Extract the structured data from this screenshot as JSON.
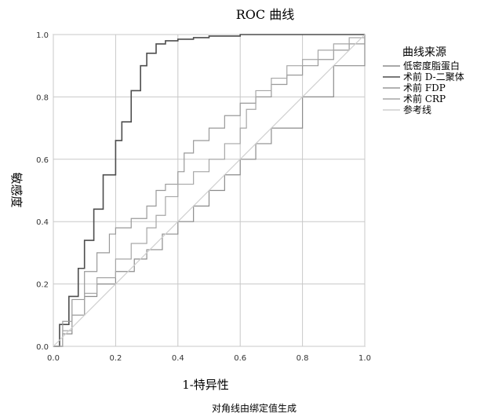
{
  "chart_data": {
    "type": "line",
    "title": "ROC 曲线",
    "xlabel": "1-特异性",
    "ylabel": "敏感度",
    "footnote": "对角线由绑定值生成",
    "xlim": [
      0,
      1
    ],
    "ylim": [
      0,
      1
    ],
    "x_ticks": [
      "0.0",
      "0.2",
      "0.4",
      "0.6",
      "0.8",
      "1.0"
    ],
    "y_ticks": [
      "0.0",
      "0.2",
      "0.4",
      "0.6",
      "0.8",
      "1.0"
    ],
    "grid": true,
    "legend": {
      "title": "曲线来源",
      "position": "right"
    },
    "series": [
      {
        "name": "低密度脂蛋白",
        "color": "#8c8c8c",
        "x": [
          0,
          0.03,
          0.06,
          0.1,
          0.14,
          0.2,
          0.26,
          0.3,
          0.35,
          0.4,
          0.45,
          0.5,
          0.55,
          0.6,
          0.65,
          0.7,
          0.8,
          0.9,
          1.0
        ],
        "y": [
          0,
          0.04,
          0.1,
          0.16,
          0.2,
          0.24,
          0.28,
          0.31,
          0.36,
          0.4,
          0.45,
          0.5,
          0.55,
          0.6,
          0.65,
          0.7,
          0.8,
          0.9,
          1.0
        ]
      },
      {
        "name": "术前 D-二聚体",
        "color": "#4d4d4d",
        "x": [
          0,
          0.02,
          0.05,
          0.08,
          0.1,
          0.13,
          0.16,
          0.2,
          0.22,
          0.25,
          0.28,
          0.3,
          0.33,
          0.36,
          0.4,
          0.45,
          0.5,
          0.6,
          0.8,
          1.0
        ],
        "y": [
          0,
          0.07,
          0.16,
          0.25,
          0.34,
          0.44,
          0.55,
          0.66,
          0.72,
          0.82,
          0.9,
          0.94,
          0.97,
          0.98,
          0.985,
          0.99,
          0.995,
          1.0,
          1.0,
          1.0
        ],
        "width": 1.6
      },
      {
        "name": "术前 FDP",
        "color": "#999999",
        "x": [
          0,
          0.03,
          0.06,
          0.1,
          0.14,
          0.18,
          0.2,
          0.25,
          0.3,
          0.33,
          0.36,
          0.4,
          0.42,
          0.45,
          0.5,
          0.55,
          0.6,
          0.65,
          0.7,
          0.75,
          0.8,
          0.85,
          0.9,
          0.95,
          1.0
        ],
        "y": [
          0,
          0.08,
          0.15,
          0.24,
          0.3,
          0.36,
          0.38,
          0.41,
          0.45,
          0.5,
          0.52,
          0.56,
          0.62,
          0.66,
          0.7,
          0.74,
          0.78,
          0.8,
          0.84,
          0.87,
          0.9,
          0.92,
          0.95,
          0.97,
          1.0
        ]
      },
      {
        "name": "术前 CRP",
        "color": "#a6a6a6",
        "x": [
          0,
          0.03,
          0.06,
          0.1,
          0.14,
          0.2,
          0.25,
          0.3,
          0.33,
          0.36,
          0.4,
          0.45,
          0.5,
          0.55,
          0.6,
          0.62,
          0.65,
          0.7,
          0.75,
          0.8,
          0.85,
          0.9,
          0.95,
          1.0
        ],
        "y": [
          0,
          0.05,
          0.1,
          0.17,
          0.22,
          0.28,
          0.33,
          0.38,
          0.42,
          0.48,
          0.52,
          0.56,
          0.6,
          0.65,
          0.7,
          0.76,
          0.82,
          0.86,
          0.9,
          0.92,
          0.95,
          0.97,
          0.99,
          1.0
        ]
      },
      {
        "name": "参考线",
        "color": "#cfcfcf",
        "x": [
          0,
          1
        ],
        "y": [
          0,
          1
        ]
      }
    ]
  }
}
